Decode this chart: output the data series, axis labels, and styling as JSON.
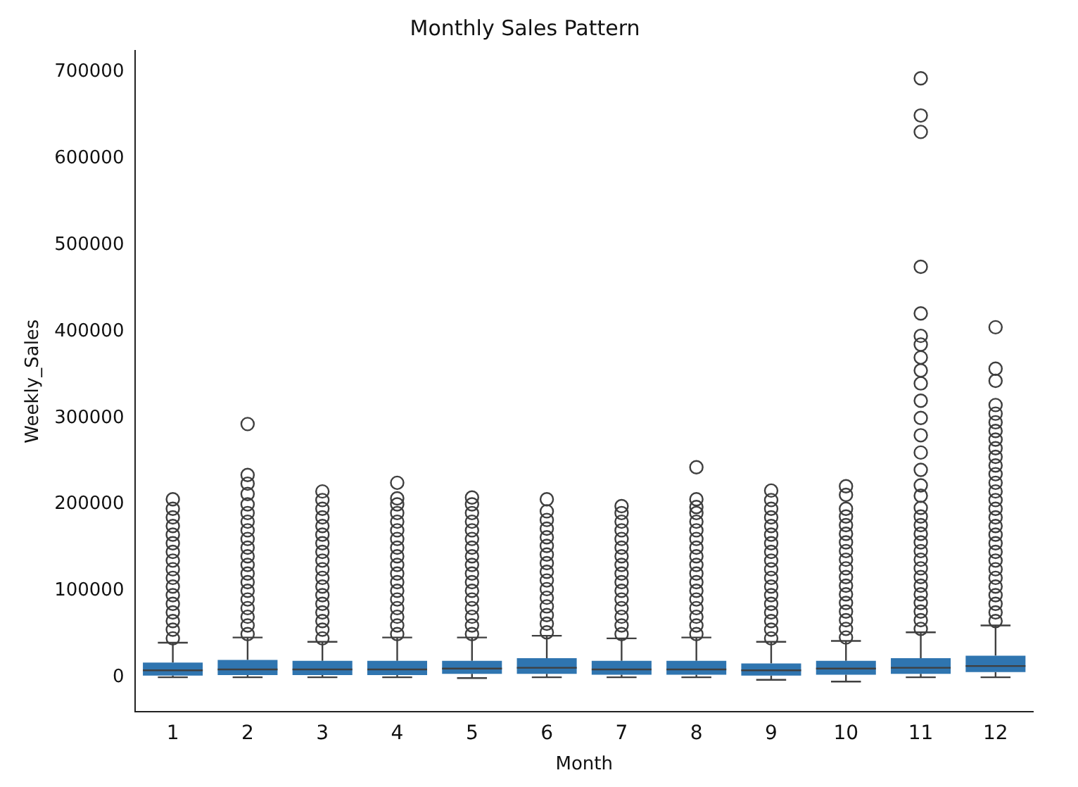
{
  "chart_data": {
    "type": "box",
    "title": "Monthly Sales Pattern",
    "xlabel": "Month",
    "ylabel": "Weekly_Sales",
    "categories": [
      "1",
      "2",
      "3",
      "4",
      "5",
      "6",
      "7",
      "8",
      "9",
      "10",
      "11",
      "12"
    ],
    "color": "#2f75b0",
    "ylim": [
      -40000,
      725000
    ],
    "yticks": [
      0,
      100000,
      200000,
      300000,
      400000,
      500000,
      600000,
      700000
    ],
    "grid": false,
    "boxes": [
      {
        "low": 0,
        "q1": 2000,
        "median": 8000,
        "q3": 17000,
        "high": 40000,
        "outliers": [
          45000,
          55000,
          65000,
          75000,
          85000,
          95000,
          105000,
          115000,
          125000,
          135000,
          145000,
          155000,
          165000,
          175000,
          185000,
          195000,
          206000
        ]
      },
      {
        "low": 0,
        "q1": 2500,
        "median": 9000,
        "q3": 20000,
        "high": 46000,
        "outliers": [
          50000,
          60000,
          70000,
          80000,
          90000,
          100000,
          110000,
          120000,
          130000,
          140000,
          150000,
          160000,
          170000,
          180000,
          190000,
          200000,
          212000,
          224000,
          234000,
          293000
        ]
      },
      {
        "low": 0,
        "q1": 2500,
        "median": 9000,
        "q3": 19000,
        "high": 41000,
        "outliers": [
          45000,
          55000,
          65000,
          75000,
          85000,
          95000,
          105000,
          115000,
          125000,
          135000,
          145000,
          155000,
          165000,
          175000,
          185000,
          195000,
          205000,
          215000
        ]
      },
      {
        "low": 0,
        "q1": 2500,
        "median": 9000,
        "q3": 19000,
        "high": 46000,
        "outliers": [
          50000,
          60000,
          70000,
          80000,
          90000,
          100000,
          110000,
          120000,
          130000,
          140000,
          150000,
          160000,
          170000,
          180000,
          190000,
          200000,
          207000,
          225000
        ]
      },
      {
        "low": -1000,
        "q1": 4000,
        "median": 10000,
        "q3": 19000,
        "high": 46000,
        "outliers": [
          50000,
          60000,
          70000,
          80000,
          90000,
          100000,
          110000,
          120000,
          130000,
          140000,
          150000,
          160000,
          170000,
          180000,
          190000,
          200000,
          208000
        ]
      },
      {
        "low": 0,
        "q1": 4000,
        "median": 11000,
        "q3": 22000,
        "high": 48000,
        "outliers": [
          52000,
          62000,
          72000,
          82000,
          92000,
          102000,
          112000,
          122000,
          132000,
          142000,
          152000,
          162000,
          172000,
          182000,
          192000,
          206000
        ]
      },
      {
        "low": 0,
        "q1": 3000,
        "median": 9000,
        "q3": 19000,
        "high": 45000,
        "outliers": [
          50000,
          60000,
          70000,
          80000,
          90000,
          100000,
          110000,
          120000,
          130000,
          140000,
          150000,
          160000,
          170000,
          180000,
          190000,
          198000
        ]
      },
      {
        "low": 0,
        "q1": 3000,
        "median": 9000,
        "q3": 19000,
        "high": 46000,
        "outliers": [
          50000,
          60000,
          70000,
          80000,
          90000,
          100000,
          110000,
          120000,
          130000,
          140000,
          150000,
          160000,
          170000,
          180000,
          190000,
          197000,
          206000,
          243000
        ]
      },
      {
        "low": -3000,
        "q1": 2000,
        "median": 8000,
        "q3": 16000,
        "high": 41000,
        "outliers": [
          45000,
          55000,
          65000,
          75000,
          85000,
          95000,
          105000,
          115000,
          125000,
          135000,
          145000,
          155000,
          165000,
          175000,
          185000,
          195000,
          205000,
          216000
        ]
      },
      {
        "low": -5000,
        "q1": 3000,
        "median": 10000,
        "q3": 19000,
        "high": 42000,
        "outliers": [
          46000,
          56000,
          66000,
          76000,
          86000,
          96000,
          106000,
          116000,
          126000,
          136000,
          146000,
          156000,
          166000,
          176000,
          186000,
          195000,
          211000,
          221000
        ]
      },
      {
        "low": 0,
        "q1": 4000,
        "median": 11000,
        "q3": 22000,
        "high": 52000,
        "outliers": [
          56000,
          66000,
          76000,
          86000,
          96000,
          106000,
          116000,
          126000,
          136000,
          146000,
          156000,
          166000,
          176000,
          186000,
          196000,
          210000,
          222000,
          240000,
          260000,
          280000,
          300000,
          320000,
          340000,
          355000,
          370000,
          385000,
          395000,
          421000,
          475000,
          631000,
          650000,
          693000
        ]
      },
      {
        "low": 0,
        "q1": 6000,
        "median": 13000,
        "q3": 25000,
        "high": 60000,
        "outliers": [
          65000,
          75000,
          85000,
          95000,
          105000,
          115000,
          125000,
          135000,
          145000,
          155000,
          165000,
          175000,
          185000,
          195000,
          205000,
          215000,
          225000,
          235000,
          245000,
          255000,
          265000,
          275000,
          285000,
          295000,
          305000,
          315000,
          343000,
          357000,
          405000
        ]
      }
    ]
  }
}
